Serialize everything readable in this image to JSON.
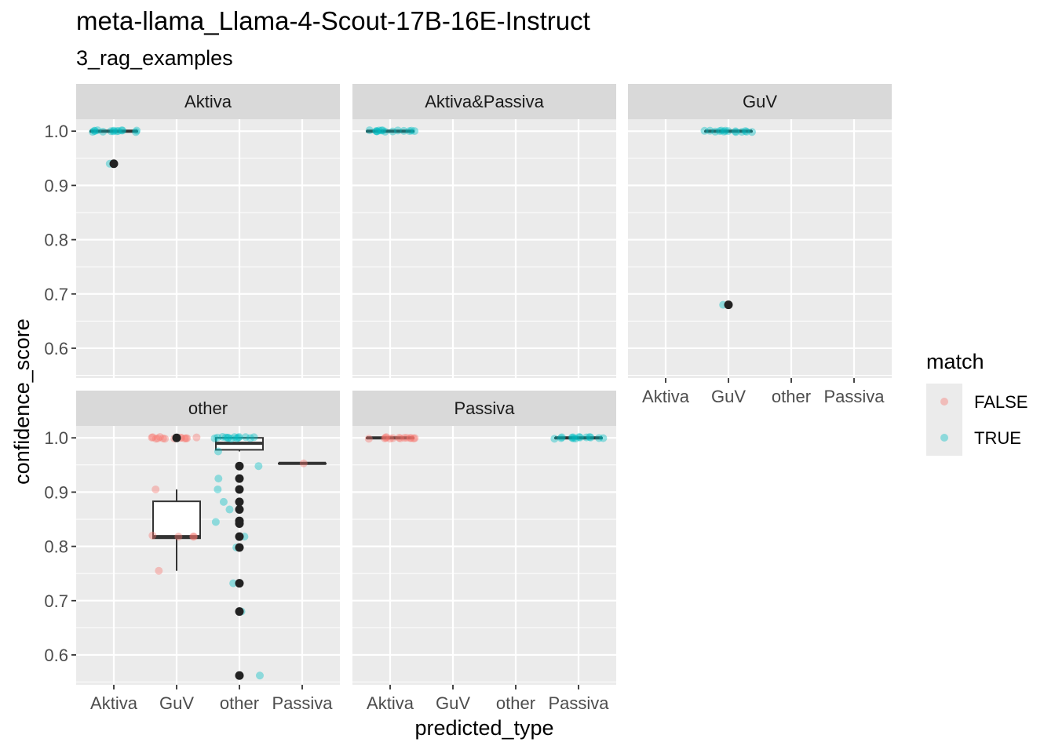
{
  "title": "meta-llama_Llama-4-Scout-17B-16E-Instruct",
  "subtitle": "3_rag_examples",
  "chart_data": {
    "type": "boxplot",
    "xlabel": "predicted_type",
    "ylabel": "confidence_score",
    "x_categories": [
      "Aktiva",
      "GuV",
      "other",
      "Passiva"
    ],
    "y_ticks": [
      0.6,
      0.7,
      0.8,
      0.9,
      1.0
    ],
    "y_tick_labels": [
      "0.6",
      "0.7",
      "0.8",
      "0.9",
      "1.0"
    ],
    "ylim": [
      0.545,
      1.022
    ],
    "grid": true,
    "legend": {
      "title": "match",
      "position": "right",
      "entries": [
        {
          "label": "FALSE",
          "color": "#F8766D"
        },
        {
          "label": "TRUE",
          "color": "#00BFC4"
        }
      ]
    },
    "facets": [
      {
        "name": "Aktiva",
        "boxes": [
          {
            "x": "Aktiva",
            "median": 1.0,
            "q1": 1.0,
            "q3": 1.0,
            "whisker_low": 1.0,
            "whisker_high": 1.0,
            "outliers": [
              0.94
            ]
          }
        ],
        "points": [
          {
            "x": "Aktiva",
            "y": 1.0,
            "match": "TRUE"
          },
          {
            "x": "Aktiva",
            "y": 0.94,
            "match": "TRUE"
          }
        ]
      },
      {
        "name": "Aktiva&Passiva",
        "boxes": [
          {
            "x": "Aktiva",
            "median": 1.0,
            "q1": 1.0,
            "q3": 1.0,
            "whisker_low": 1.0,
            "whisker_high": 1.0,
            "outliers": []
          }
        ],
        "points": [
          {
            "x": "Aktiva",
            "y": 1.0,
            "match": "TRUE"
          }
        ]
      },
      {
        "name": "GuV",
        "boxes": [
          {
            "x": "GuV",
            "median": 1.0,
            "q1": 1.0,
            "q3": 1.0,
            "whisker_low": 1.0,
            "whisker_high": 1.0,
            "outliers": [
              0.68
            ]
          }
        ],
        "points": [
          {
            "x": "GuV",
            "y": 1.0,
            "match": "TRUE"
          },
          {
            "x": "GuV",
            "y": 0.68,
            "match": "TRUE"
          }
        ]
      },
      {
        "name": "other",
        "boxes": [
          {
            "x": "GuV",
            "median": 0.818,
            "q1": 0.815,
            "q3": 0.883,
            "whisker_low": 0.755,
            "whisker_high": 0.905,
            "outliers": [
              1.0
            ]
          },
          {
            "x": "other",
            "median": 0.99,
            "q1": 0.978,
            "q3": 1.0,
            "whisker_low": 0.975,
            "whisker_high": 1.0,
            "outliers": [
              0.948,
              0.925,
              0.905,
              0.882,
              0.868,
              0.847,
              0.842,
              0.818,
              0.798,
              0.732,
              0.68,
              0.562
            ]
          },
          {
            "x": "Passiva",
            "median": 0.953,
            "q1": 0.953,
            "q3": 0.953,
            "whisker_low": 0.953,
            "whisker_high": 0.953,
            "outliers": []
          }
        ],
        "points": [
          {
            "x": "GuV",
            "y": 1.0,
            "match": "FALSE"
          },
          {
            "x": "GuV",
            "y": 0.905,
            "match": "FALSE"
          },
          {
            "x": "GuV",
            "y": 0.82,
            "match": "FALSE"
          },
          {
            "x": "GuV",
            "y": 0.818,
            "match": "FALSE"
          },
          {
            "x": "GuV",
            "y": 0.818,
            "match": "FALSE"
          },
          {
            "x": "GuV",
            "y": 0.818,
            "match": "FALSE"
          },
          {
            "x": "GuV",
            "y": 0.755,
            "match": "FALSE"
          },
          {
            "x": "other",
            "y": 1.0,
            "match": "TRUE"
          },
          {
            "x": "other",
            "y": 0.975,
            "match": "TRUE"
          },
          {
            "x": "other",
            "y": 0.948,
            "match": "TRUE"
          },
          {
            "x": "other",
            "y": 0.925,
            "match": "TRUE"
          },
          {
            "x": "other",
            "y": 0.905,
            "match": "TRUE"
          },
          {
            "x": "other",
            "y": 0.882,
            "match": "TRUE"
          },
          {
            "x": "other",
            "y": 0.868,
            "match": "TRUE"
          },
          {
            "x": "other",
            "y": 0.845,
            "match": "TRUE"
          },
          {
            "x": "other",
            "y": 0.818,
            "match": "TRUE"
          },
          {
            "x": "other",
            "y": 0.798,
            "match": "TRUE"
          },
          {
            "x": "other",
            "y": 0.732,
            "match": "TRUE"
          },
          {
            "x": "other",
            "y": 0.68,
            "match": "TRUE"
          },
          {
            "x": "other",
            "y": 0.562,
            "match": "TRUE"
          },
          {
            "x": "Passiva",
            "y": 0.953,
            "match": "FALSE"
          }
        ]
      },
      {
        "name": "Passiva",
        "boxes": [
          {
            "x": "Aktiva",
            "median": 1.0,
            "q1": 1.0,
            "q3": 1.0,
            "whisker_low": 1.0,
            "whisker_high": 1.0,
            "outliers": []
          },
          {
            "x": "Passiva",
            "median": 1.0,
            "q1": 1.0,
            "q3": 1.0,
            "whisker_low": 1.0,
            "whisker_high": 1.0,
            "outliers": []
          }
        ],
        "points": [
          {
            "x": "Aktiva",
            "y": 1.0,
            "match": "FALSE"
          },
          {
            "x": "Passiva",
            "y": 1.0,
            "match": "TRUE"
          }
        ]
      }
    ]
  }
}
